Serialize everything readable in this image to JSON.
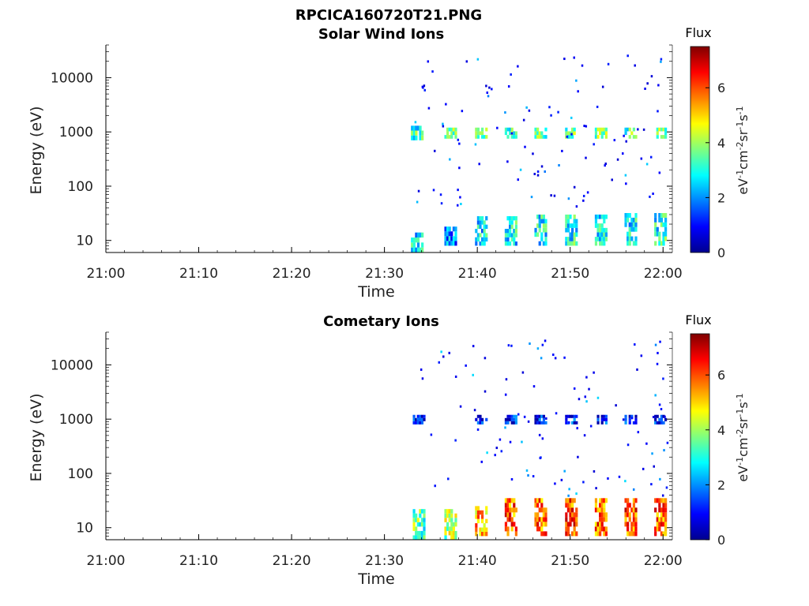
{
  "header": {
    "title_line1": "RPCICA160720T21.PNG"
  },
  "chart_data": [
    {
      "type": "heatmap",
      "title": "Solar Wind Ions",
      "xlabel": "Time",
      "ylabel": "Energy (eV)",
      "yscale": "log",
      "xlim": [
        "21:00",
        "22:00"
      ],
      "ylim": [
        6,
        40000
      ],
      "x_ticks": [
        "21:00",
        "21:10",
        "21:20",
        "21:30",
        "21:40",
        "21:50",
        "22:00"
      ],
      "y_ticks": [
        "10",
        "100",
        "1000",
        "10000"
      ],
      "colorbar": {
        "title": "Flux",
        "label": "eV-1cm-2sr-1s-1",
        "ticks": [
          "0",
          "2",
          "4",
          "6"
        ],
        "range": [
          0,
          7.5
        ],
        "colormap": "jet"
      },
      "data_start": "21:33",
      "cycle_minutes": 3.3,
      "bursts": [
        {
          "t_min": 33.4,
          "e_lo": 6,
          "e_hi": 14,
          "flux": 2.5
        },
        {
          "t_min": 33.4,
          "e_lo": 700,
          "e_hi": 1300,
          "flux": 3.2
        },
        {
          "t_min": 37.0,
          "e_lo": 8,
          "e_hi": 18,
          "flux": 2.0
        },
        {
          "t_min": 37.0,
          "e_lo": 750,
          "e_hi": 1200,
          "flux": 3.6
        },
        {
          "t_min": 40.3,
          "e_lo": 8,
          "e_hi": 28,
          "flux": 2.6
        },
        {
          "t_min": 40.3,
          "e_lo": 750,
          "e_hi": 1200,
          "flux": 3.5
        },
        {
          "t_min": 43.5,
          "e_lo": 8,
          "e_hi": 28,
          "flux": 2.8
        },
        {
          "t_min": 43.5,
          "e_lo": 750,
          "e_hi": 1200,
          "flux": 3.4
        },
        {
          "t_min": 46.7,
          "e_lo": 8,
          "e_hi": 30,
          "flux": 2.9
        },
        {
          "t_min": 46.7,
          "e_lo": 750,
          "e_hi": 1200,
          "flux": 3.3
        },
        {
          "t_min": 50.0,
          "e_lo": 8,
          "e_hi": 30,
          "flux": 3.0
        },
        {
          "t_min": 50.0,
          "e_lo": 750,
          "e_hi": 1200,
          "flux": 3.4
        },
        {
          "t_min": 53.2,
          "e_lo": 8,
          "e_hi": 30,
          "flux": 2.7
        },
        {
          "t_min": 53.2,
          "e_lo": 750,
          "e_hi": 1200,
          "flux": 3.6
        },
        {
          "t_min": 56.4,
          "e_lo": 8,
          "e_hi": 32,
          "flux": 2.8
        },
        {
          "t_min": 56.4,
          "e_lo": 750,
          "e_hi": 1200,
          "flux": 3.5
        },
        {
          "t_min": 59.6,
          "e_lo": 8,
          "e_hi": 32,
          "flux": 3.0
        },
        {
          "t_min": 59.6,
          "e_lo": 750,
          "e_hi": 1200,
          "flux": 3.5
        }
      ]
    },
    {
      "type": "heatmap",
      "title": "Cometary Ions",
      "xlabel": "Time",
      "ylabel": "Energy (eV)",
      "yscale": "log",
      "xlim": [
        "21:00",
        "22:00"
      ],
      "ylim": [
        6,
        40000
      ],
      "x_ticks": [
        "21:00",
        "21:10",
        "21:20",
        "21:30",
        "21:40",
        "21:50",
        "22:00"
      ],
      "y_ticks": [
        "10",
        "100",
        "1000",
        "10000"
      ],
      "colorbar": {
        "title": "Flux",
        "label": "eV-1cm-2sr-1s-1",
        "ticks": [
          "0",
          "2",
          "4",
          "6"
        ],
        "range": [
          0,
          7.5
        ],
        "colormap": "jet"
      },
      "data_start": "21:33",
      "cycle_minutes": 3.3,
      "bursts": [
        {
          "t_min": 33.6,
          "e_lo": 6,
          "e_hi": 22,
          "flux": 3.5
        },
        {
          "t_min": 33.6,
          "e_lo": 800,
          "e_hi": 1200,
          "flux": 1.0
        },
        {
          "t_min": 37.0,
          "e_lo": 6,
          "e_hi": 22,
          "flux": 4.0
        },
        {
          "t_min": 40.3,
          "e_lo": 7,
          "e_hi": 25,
          "flux": 5.2
        },
        {
          "t_min": 40.3,
          "e_lo": 800,
          "e_hi": 1200,
          "flux": 1.0
        },
        {
          "t_min": 43.5,
          "e_lo": 7,
          "e_hi": 35,
          "flux": 5.8
        },
        {
          "t_min": 43.5,
          "e_lo": 800,
          "e_hi": 1200,
          "flux": 1.0
        },
        {
          "t_min": 46.7,
          "e_lo": 7,
          "e_hi": 35,
          "flux": 5.8
        },
        {
          "t_min": 46.7,
          "e_lo": 800,
          "e_hi": 1200,
          "flux": 1.0
        },
        {
          "t_min": 50.0,
          "e_lo": 7,
          "e_hi": 35,
          "flux": 6.0
        },
        {
          "t_min": 50.0,
          "e_lo": 800,
          "e_hi": 1200,
          "flux": 1.0
        },
        {
          "t_min": 53.2,
          "e_lo": 7,
          "e_hi": 35,
          "flux": 5.8
        },
        {
          "t_min": 53.2,
          "e_lo": 800,
          "e_hi": 1200,
          "flux": 1.0
        },
        {
          "t_min": 56.4,
          "e_lo": 7,
          "e_hi": 35,
          "flux": 6.0
        },
        {
          "t_min": 56.4,
          "e_lo": 800,
          "e_hi": 1200,
          "flux": 1.0
        },
        {
          "t_min": 59.6,
          "e_lo": 7,
          "e_hi": 35,
          "flux": 5.8
        },
        {
          "t_min": 59.6,
          "e_lo": 800,
          "e_hi": 1200,
          "flux": 1.0
        }
      ]
    }
  ]
}
